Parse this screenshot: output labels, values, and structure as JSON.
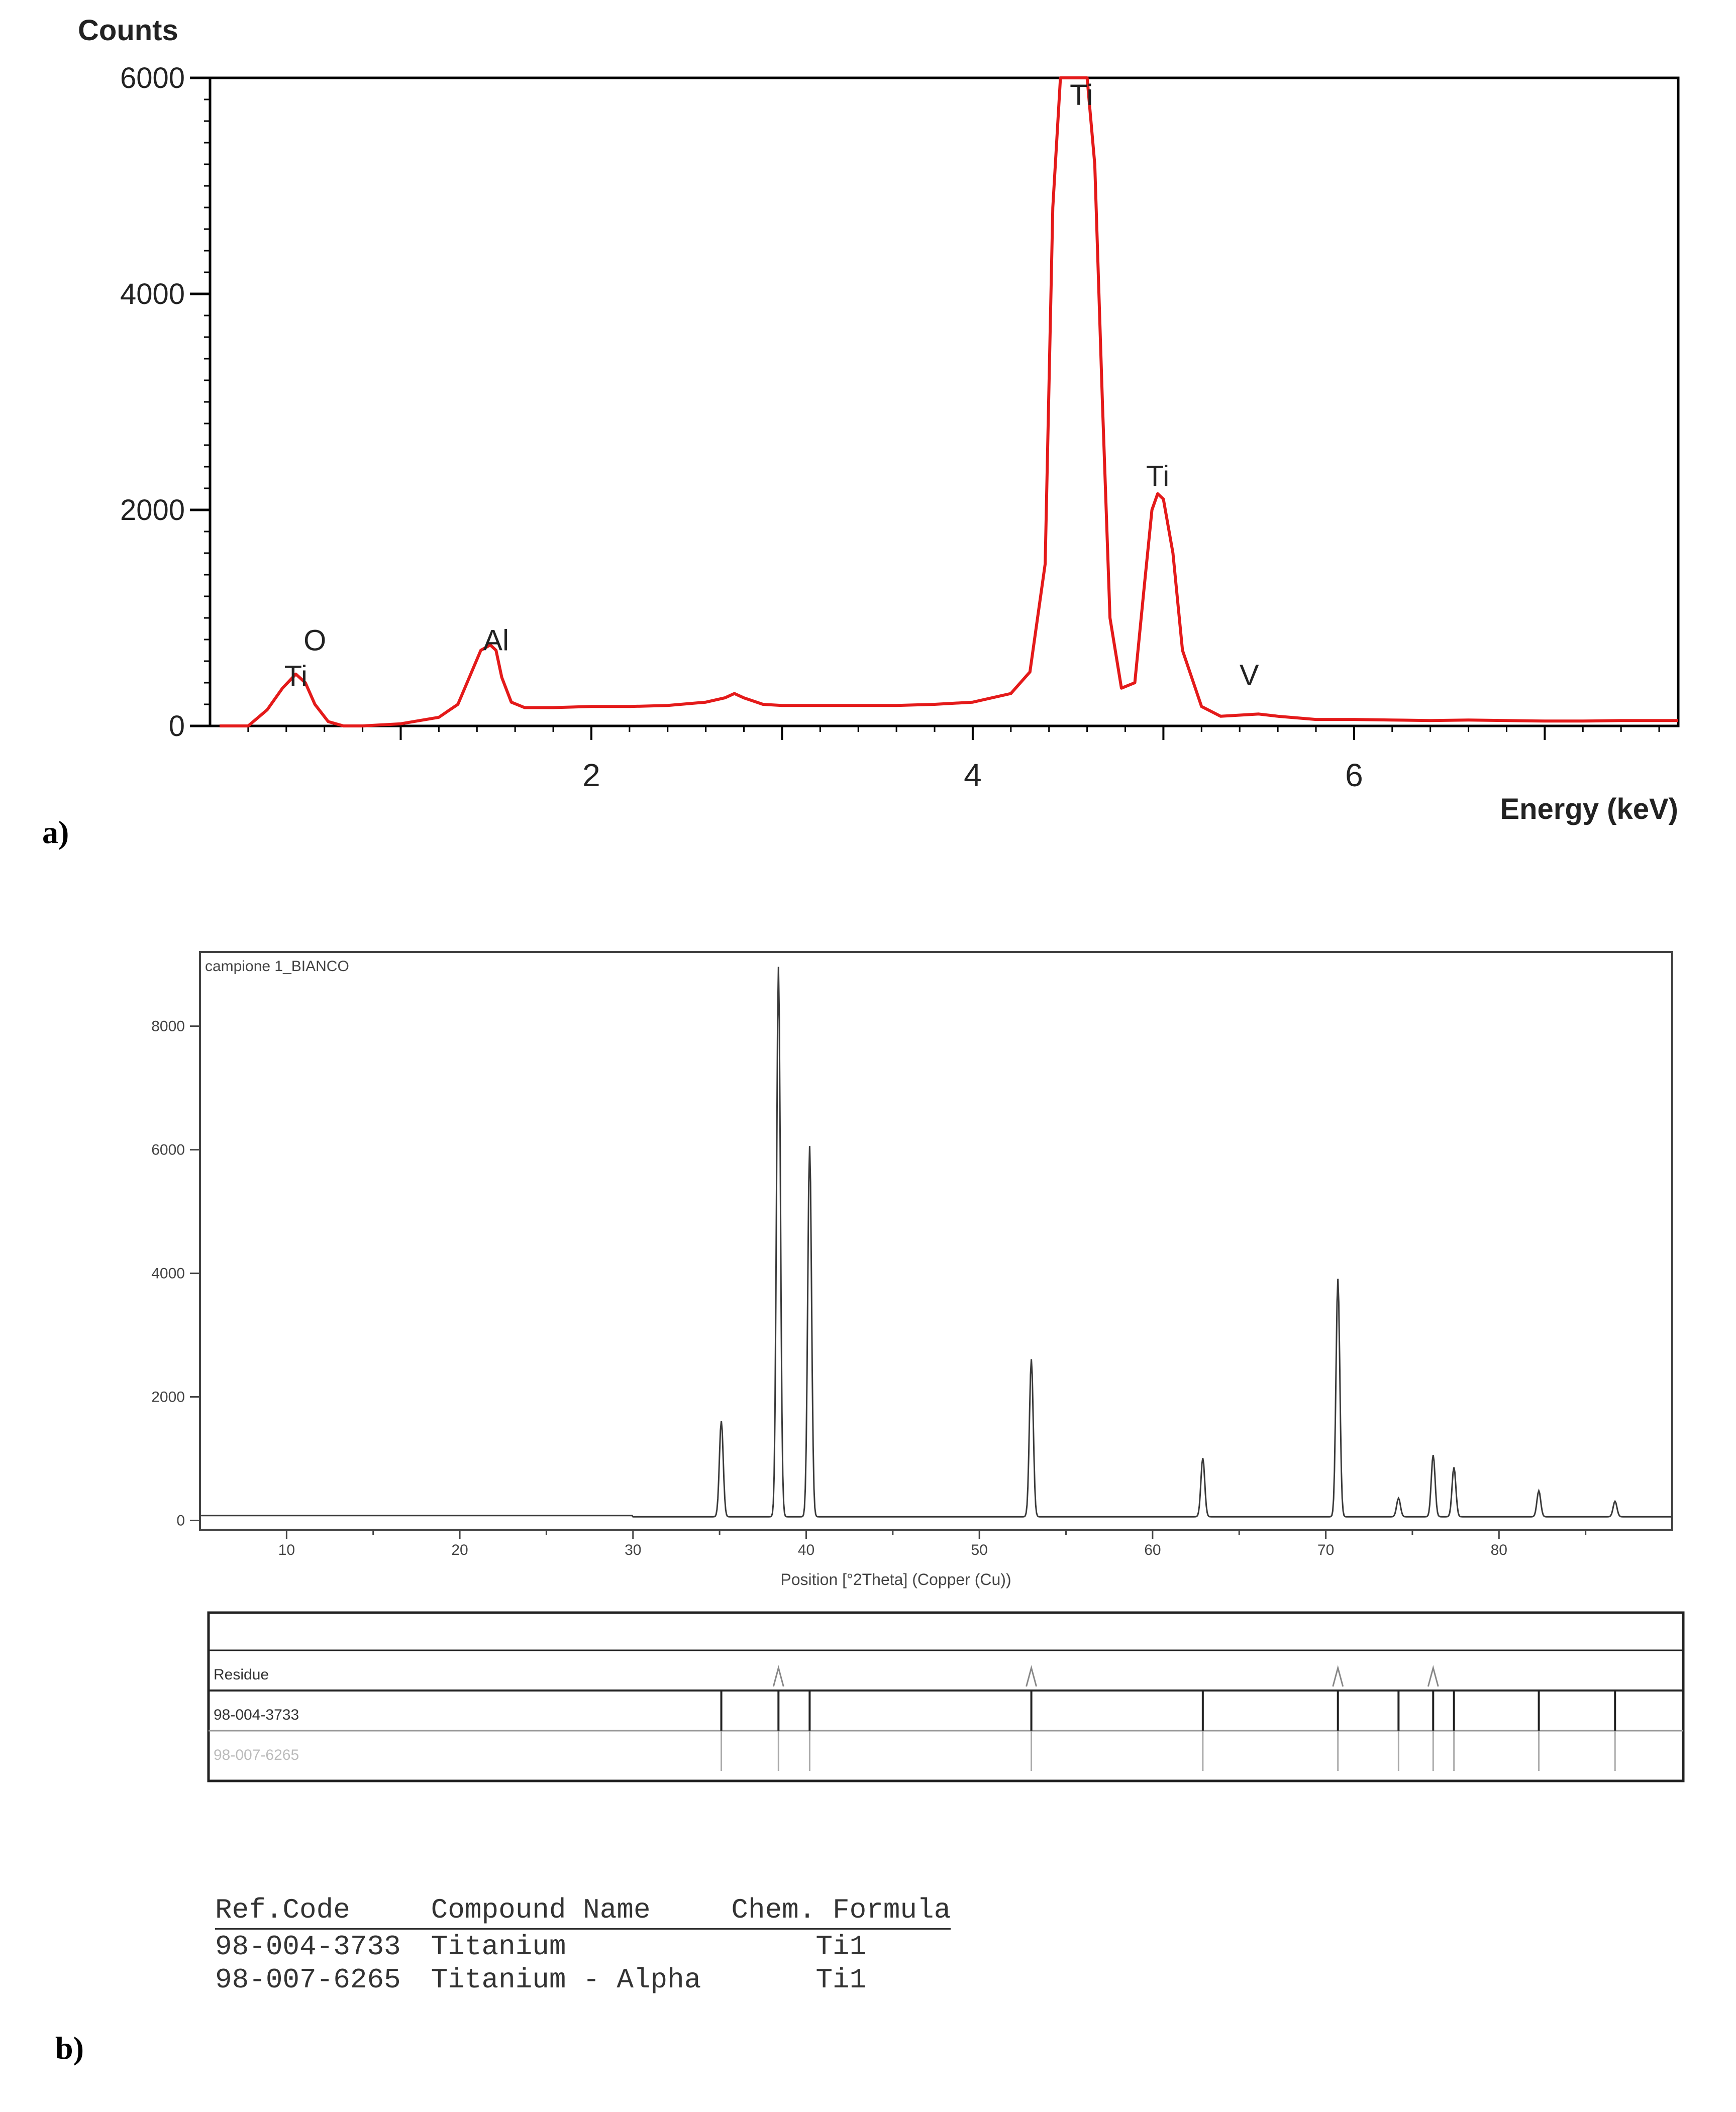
{
  "panel_labels": {
    "a": "a)",
    "b": "b)"
  },
  "colors": {
    "eds_line": "#e41a1a",
    "xrd_line": "#3a3a3a",
    "axis": "#000000"
  },
  "chart_data": [
    {
      "id": "eds",
      "type": "line",
      "title": "",
      "ylabel": "Counts",
      "xlabel": "Energy (keV)",
      "xlim": [
        0,
        7.7
      ],
      "ylim": [
        0,
        6000
      ],
      "xticks": [
        2,
        4,
        6
      ],
      "yticks": [
        0,
        2000,
        4000,
        6000
      ],
      "grid": false,
      "series": [
        {
          "x": [
            0.05,
            0.2,
            0.3,
            0.38,
            0.45,
            0.5,
            0.55,
            0.62,
            0.7,
            0.8,
            1.0,
            1.2,
            1.3,
            1.36,
            1.42,
            1.47,
            1.5,
            1.53,
            1.58,
            1.65,
            1.8,
            2.0,
            2.2,
            2.4,
            2.6,
            2.7,
            2.75,
            2.8,
            2.9,
            3.0,
            3.2,
            3.4,
            3.6,
            3.8,
            4.0,
            4.2,
            4.3,
            4.38,
            4.42,
            4.46,
            4.5,
            4.55,
            4.6,
            4.64,
            4.68,
            4.72,
            4.78,
            4.85,
            4.9,
            4.94,
            4.97,
            5.0,
            5.05,
            5.1,
            5.2,
            5.3,
            5.4,
            5.5,
            5.6,
            5.8,
            6.0,
            6.2,
            6.4,
            6.6,
            6.8,
            7.0,
            7.2,
            7.4,
            7.7
          ],
          "y": [
            0,
            0,
            150,
            350,
            480,
            400,
            200,
            40,
            0,
            0,
            20,
            80,
            200,
            450,
            700,
            750,
            700,
            450,
            220,
            170,
            170,
            180,
            180,
            190,
            220,
            260,
            300,
            260,
            200,
            190,
            190,
            190,
            190,
            200,
            220,
            300,
            500,
            1500,
            4800,
            6000,
            6000,
            6000,
            6000,
            5200,
            3000,
            1000,
            350,
            400,
            1300,
            2000,
            2150,
            2100,
            1600,
            700,
            180,
            90,
            100,
            110,
            90,
            60,
            60,
            55,
            50,
            55,
            50,
            45,
            45,
            50,
            50
          ]
        }
      ],
      "annotations": [
        {
          "text": "O",
          "x": 0.55,
          "y": 700
        },
        {
          "text": "Ti",
          "x": 0.45,
          "y": 370
        },
        {
          "text": "Al",
          "x": 1.5,
          "y": 700
        },
        {
          "text": "Ti",
          "x": 4.57,
          "y": 5750
        },
        {
          "text": "Ti",
          "x": 4.97,
          "y": 2220
        },
        {
          "text": "V",
          "x": 5.45,
          "y": 380
        }
      ]
    },
    {
      "id": "xrd",
      "type": "line",
      "title": "campione 1_BIANCO",
      "ylabel": "",
      "xlabel": "Position [°2Theta] (Copper (Cu))",
      "xlim": [
        5,
        90
      ],
      "ylim": [
        -150,
        9200
      ],
      "xticks": [
        10,
        20,
        30,
        40,
        50,
        60,
        70,
        80
      ],
      "yticks": [
        0,
        2000,
        4000,
        6000,
        8000
      ],
      "grid": false,
      "baseline": 60,
      "peaks": [
        {
          "x": 35.1,
          "y": 1550
        },
        {
          "x": 38.4,
          "y": 8900
        },
        {
          "x": 40.2,
          "y": 6000
        },
        {
          "x": 53.0,
          "y": 2550
        },
        {
          "x": 62.9,
          "y": 950
        },
        {
          "x": 70.7,
          "y": 3850
        },
        {
          "x": 74.2,
          "y": 300
        },
        {
          "x": 76.2,
          "y": 1000
        },
        {
          "x": 77.4,
          "y": 800
        },
        {
          "x": 82.3,
          "y": 420
        },
        {
          "x": 86.7,
          "y": 250
        }
      ],
      "reference_rows": [
        {
          "label": "Residue",
          "residue_peaks": [
            38.4,
            53.0,
            70.7,
            76.2
          ]
        },
        {
          "label": "98-004-3733",
          "lines": [
            35.1,
            38.4,
            40.2,
            53.0,
            62.9,
            70.7,
            74.2,
            76.2,
            77.4,
            82.3,
            86.7
          ]
        },
        {
          "label": "98-007-6265",
          "lines": [
            35.1,
            38.4,
            40.2,
            53.0,
            62.9,
            70.7,
            74.2,
            76.2,
            77.4,
            82.3,
            86.7
          ]
        }
      ]
    }
  ],
  "ref_table": {
    "headers": [
      "Ref.Code",
      "Compound Name",
      "Chem. Formula"
    ],
    "rows": [
      [
        "98-004-3733",
        "Titanium",
        "Ti1"
      ],
      [
        "98-007-6265",
        "Titanium - Alpha",
        "Ti1"
      ]
    ]
  }
}
